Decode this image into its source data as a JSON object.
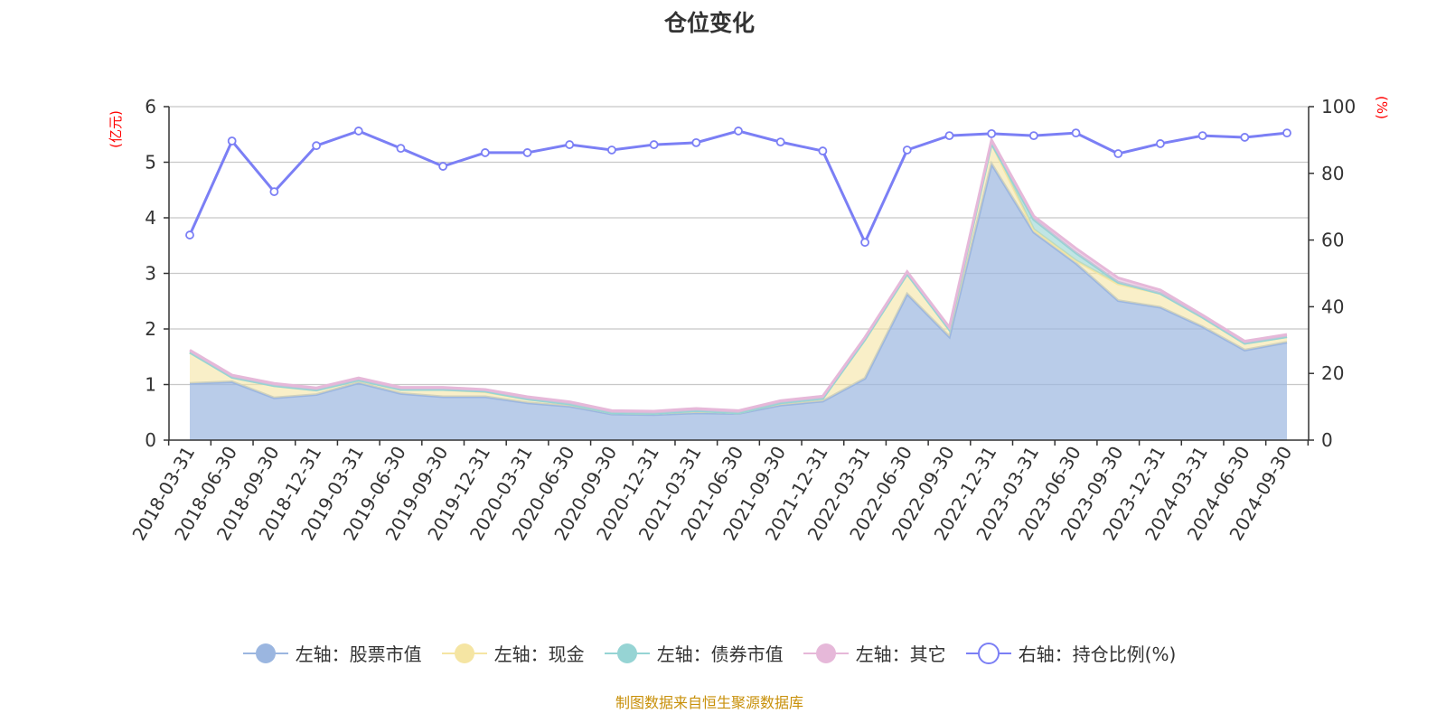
{
  "chart_data": {
    "type": "area",
    "title": "仓位变化",
    "ylabel_left": "(亿元)",
    "ylabel_right": "(%)",
    "ylim_left": [
      0,
      6
    ],
    "ylim_right": [
      0,
      100
    ],
    "yticks_left": [
      "0",
      "1",
      "2",
      "3",
      "4",
      "5",
      "6"
    ],
    "yticks_right": [
      "0",
      "20",
      "40",
      "60",
      "80",
      "100"
    ],
    "grid": true,
    "legend_position": "bottom",
    "categories": [
      "2018-03-31",
      "2018-06-30",
      "2018-09-30",
      "2018-12-31",
      "2019-03-31",
      "2019-06-30",
      "2019-09-30",
      "2019-12-31",
      "2020-03-31",
      "2020-06-30",
      "2020-09-30",
      "2020-12-31",
      "2021-03-31",
      "2021-06-30",
      "2021-09-30",
      "2021-12-31",
      "2022-03-31",
      "2022-06-30",
      "2022-09-30",
      "2022-12-31",
      "2023-03-31",
      "2023-06-30",
      "2023-09-30",
      "2023-12-31",
      "2024-03-31",
      "2024-06-30",
      "2024-09-30"
    ],
    "series": [
      {
        "name": "左轴：股票市值",
        "axis": "left",
        "stack": true,
        "color": "#9bb6e0",
        "values": [
          1.02,
          1.05,
          0.76,
          0.82,
          1.03,
          0.84,
          0.78,
          0.78,
          0.67,
          0.61,
          0.47,
          0.46,
          0.49,
          0.48,
          0.63,
          0.7,
          1.11,
          2.63,
          1.86,
          4.97,
          3.74,
          3.18,
          2.51,
          2.39,
          2.04,
          1.62,
          1.76
        ]
      },
      {
        "name": "左轴：现金",
        "axis": "left",
        "stack": true,
        "color": "#f5e5a3",
        "values": [
          0.56,
          0.08,
          0.22,
          0.08,
          0.05,
          0.07,
          0.13,
          0.09,
          0.07,
          0.04,
          0.02,
          0.02,
          0.04,
          0.01,
          0.04,
          0.05,
          0.7,
          0.36,
          0.13,
          0.37,
          0.05,
          0.05,
          0.3,
          0.25,
          0.17,
          0.12,
          0.1
        ]
      },
      {
        "name": "左轴：债券市值",
        "axis": "left",
        "stack": true,
        "color": "#96d4d4",
        "values": [
          0,
          0,
          0,
          0,
          0,
          0,
          0,
          0.01,
          0,
          0,
          0,
          0,
          0,
          0,
          0,
          0,
          0,
          0,
          0,
          0,
          0.18,
          0.14,
          0.03,
          0,
          0,
          0,
          0
        ]
      },
      {
        "name": "左轴：其它",
        "axis": "left",
        "stack": true,
        "color": "#e6b8d9",
        "values": [
          0.04,
          0.04,
          0.04,
          0.04,
          0.04,
          0.04,
          0.04,
          0.03,
          0.04,
          0.04,
          0.04,
          0.04,
          0.04,
          0.04,
          0.04,
          0.04,
          0.04,
          0.04,
          0.04,
          0.06,
          0.06,
          0.08,
          0.08,
          0.06,
          0.04,
          0.04,
          0.04
        ]
      },
      {
        "name": "右轴：持仓比例(%)",
        "axis": "right",
        "type": "line",
        "color": "#7b7ff5",
        "values": [
          61.5,
          89.7,
          74.5,
          88.3,
          92.7,
          87.5,
          82.1,
          86.2,
          86.2,
          88.6,
          87.0,
          88.6,
          89.2,
          92.7,
          89.4,
          86.7,
          59.3,
          87.0,
          91.3,
          91.9,
          91.3,
          92.1,
          85.9,
          88.9,
          91.3,
          90.8,
          92.1
        ]
      }
    ]
  },
  "source": "制图数据来自恒生聚源数据库"
}
